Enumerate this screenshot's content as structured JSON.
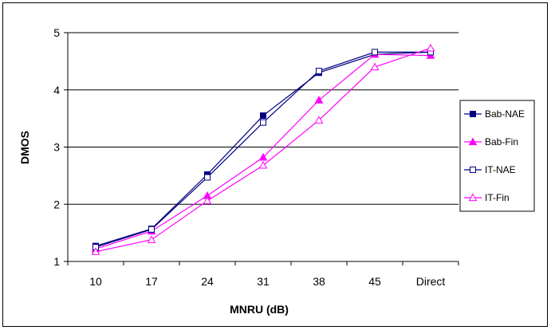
{
  "chart_data": {
    "type": "line",
    "title": "",
    "xlabel": "MNRU (dB)",
    "ylabel": "DMOS",
    "categories": [
      "10",
      "17",
      "24",
      "31",
      "38",
      "45",
      "Direct"
    ],
    "ylim": [
      1,
      5
    ],
    "yticks": [
      1,
      2,
      3,
      4,
      5
    ],
    "grid": true,
    "legend_position": "right",
    "series": [
      {
        "name": "Bab-NAE",
        "color": "#000080",
        "marker": "square-filled",
        "values": [
          1.27,
          1.57,
          2.52,
          3.55,
          4.3,
          4.62,
          4.66
        ]
      },
      {
        "name": "Bab-Fin",
        "color": "#FF00FF",
        "marker": "triangle-filled",
        "values": [
          1.22,
          1.53,
          2.15,
          2.82,
          3.82,
          4.62,
          4.6
        ]
      },
      {
        "name": "IT-NAE",
        "color": "#000080",
        "marker": "square-open",
        "values": [
          1.25,
          1.56,
          2.47,
          3.43,
          4.33,
          4.66,
          4.66
        ]
      },
      {
        "name": "IT-Fin",
        "color": "#FF00FF",
        "marker": "triangle-open",
        "values": [
          1.17,
          1.38,
          2.06,
          2.68,
          3.47,
          4.4,
          4.73
        ]
      }
    ]
  }
}
